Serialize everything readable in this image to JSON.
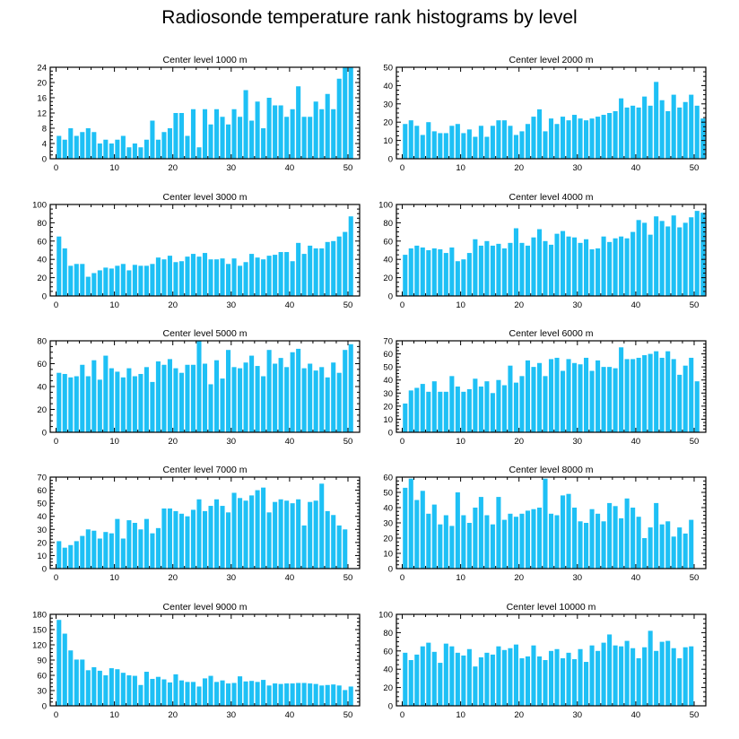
{
  "title": "Radiosonde temperature rank histograms by level",
  "colors": {
    "bar": "#1ec0f5",
    "axis": "#000000",
    "background": "#ffffff"
  },
  "chart_data": [
    {
      "type": "bar",
      "title": "Center level 1000 m",
      "xlim": [
        -1,
        52
      ],
      "xticks": [
        0,
        10,
        20,
        30,
        40,
        50
      ],
      "ylim": [
        0,
        24
      ],
      "yticks": [
        0,
        4,
        8,
        12,
        16,
        20,
        24
      ],
      "values": [
        6,
        5,
        8,
        6,
        7,
        8,
        7,
        4,
        5,
        4,
        5,
        6,
        3,
        4,
        3,
        5,
        10,
        5,
        7,
        8,
        12,
        12,
        6,
        13,
        3,
        13,
        9,
        13,
        11,
        9,
        13,
        11,
        18,
        10,
        15,
        8,
        16,
        14,
        14,
        11,
        13,
        19,
        11,
        11,
        15,
        13,
        17,
        13,
        21,
        24,
        24
      ]
    },
    {
      "type": "bar",
      "title": "Center level 2000 m",
      "xlim": [
        -1,
        52
      ],
      "xticks": [
        0,
        10,
        20,
        30,
        40,
        50
      ],
      "ylim": [
        0,
        50
      ],
      "yticks": [
        0,
        10,
        20,
        30,
        40,
        50
      ],
      "values": [
        19,
        21,
        18,
        13,
        20,
        15,
        14,
        14,
        18,
        19,
        14,
        16,
        12,
        18,
        12,
        18,
        21,
        21,
        18,
        13,
        15,
        19,
        23,
        27,
        15,
        22,
        19,
        23,
        21,
        24,
        22,
        21,
        22,
        23,
        24,
        25,
        26,
        33,
        28,
        29,
        28,
        34,
        29,
        42,
        32,
        26,
        35,
        28,
        31,
        35,
        29,
        22
      ]
    },
    {
      "type": "bar",
      "title": "Center level 3000 m",
      "xlim": [
        -1,
        52
      ],
      "xticks": [
        0,
        10,
        20,
        30,
        40,
        50
      ],
      "ylim": [
        0,
        100
      ],
      "yticks": [
        0,
        20,
        40,
        60,
        80,
        100
      ],
      "values": [
        65,
        52,
        33,
        35,
        35,
        21,
        25,
        28,
        31,
        30,
        33,
        35,
        28,
        34,
        33,
        33,
        35,
        42,
        40,
        44,
        37,
        38,
        43,
        46,
        43,
        47,
        40,
        40,
        41,
        35,
        41,
        33,
        37,
        46,
        42,
        40,
        44,
        45,
        48,
        48,
        38,
        58,
        46,
        55,
        52,
        52,
        59,
        60,
        65,
        70,
        87
      ]
    },
    {
      "type": "bar",
      "title": "Center level 4000 m",
      "xlim": [
        -1,
        52
      ],
      "xticks": [
        0,
        10,
        20,
        30,
        40,
        50
      ],
      "ylim": [
        0,
        100
      ],
      "yticks": [
        0,
        20,
        40,
        60,
        80,
        100
      ],
      "values": [
        45,
        52,
        55,
        53,
        50,
        52,
        51,
        47,
        53,
        38,
        40,
        47,
        62,
        55,
        60,
        55,
        57,
        52,
        58,
        74,
        58,
        55,
        64,
        73,
        60,
        56,
        68,
        71,
        65,
        64,
        58,
        62,
        51,
        52,
        65,
        59,
        63,
        65,
        63,
        70,
        83,
        80,
        67,
        87,
        82,
        76,
        88,
        75,
        80,
        86,
        93,
        91
      ]
    },
    {
      "type": "bar",
      "title": "Center level 5000 m",
      "xlim": [
        -1,
        52
      ],
      "xticks": [
        0,
        10,
        20,
        30,
        40,
        50
      ],
      "ylim": [
        0,
        80
      ],
      "yticks": [
        0,
        20,
        40,
        60,
        80
      ],
      "values": [
        52,
        51,
        48,
        49,
        59,
        49,
        63,
        46,
        67,
        56,
        53,
        48,
        56,
        49,
        51,
        57,
        44,
        62,
        59,
        64,
        56,
        52,
        59,
        59,
        80,
        60,
        42,
        63,
        47,
        72,
        57,
        56,
        61,
        67,
        58,
        49,
        72,
        60,
        65,
        57,
        70,
        73,
        56,
        60,
        54,
        57,
        48,
        61,
        52,
        72,
        77
      ]
    },
    {
      "type": "bar",
      "title": "Center level 6000 m",
      "xlim": [
        -1,
        52
      ],
      "xticks": [
        0,
        10,
        20,
        30,
        40,
        50
      ],
      "ylim": [
        0,
        70
      ],
      "yticks": [
        0,
        10,
        20,
        30,
        40,
        50,
        60,
        70
      ],
      "values": [
        22,
        32,
        34,
        37,
        31,
        39,
        31,
        31,
        43,
        35,
        31,
        33,
        41,
        35,
        39,
        30,
        40,
        36,
        51,
        38,
        43,
        55,
        50,
        53,
        43,
        56,
        57,
        47,
        56,
        53,
        52,
        57,
        47,
        55,
        50,
        50,
        49,
        65,
        56,
        56,
        57,
        59,
        60,
        62,
        57,
        62,
        56,
        44,
        51,
        57,
        39
      ]
    },
    {
      "type": "bar",
      "title": "Center level 7000 m",
      "xlim": [
        -1,
        52
      ],
      "xticks": [
        0,
        10,
        20,
        30,
        40,
        50
      ],
      "ylim": [
        0,
        70
      ],
      "yticks": [
        0,
        10,
        20,
        30,
        40,
        50,
        60,
        70
      ],
      "values": [
        21,
        16,
        18,
        21,
        25,
        30,
        29,
        23,
        28,
        27,
        38,
        23,
        37,
        35,
        30,
        38,
        27,
        31,
        46,
        46,
        44,
        42,
        40,
        45,
        53,
        44,
        48,
        53,
        48,
        43,
        58,
        54,
        52,
        56,
        60,
        62,
        43,
        51,
        53,
        52,
        50,
        53,
        33,
        51,
        52,
        65,
        44,
        41,
        33,
        30
      ]
    },
    {
      "type": "bar",
      "title": "Center level 8000 m",
      "xlim": [
        -1,
        52
      ],
      "xticks": [
        0,
        10,
        20,
        30,
        40,
        50
      ],
      "ylim": [
        0,
        60
      ],
      "yticks": [
        0,
        10,
        20,
        30,
        40,
        50,
        60
      ],
      "values": [
        53,
        59,
        45,
        51,
        36,
        42,
        29,
        35,
        28,
        50,
        35,
        30,
        40,
        47,
        35,
        29,
        47,
        32,
        36,
        34,
        36,
        38,
        39,
        40,
        59,
        36,
        35,
        48,
        49,
        40,
        31,
        30,
        39,
        36,
        31,
        43,
        41,
        33,
        46,
        40,
        34,
        20,
        27,
        43,
        29,
        31,
        21,
        27,
        23,
        32
      ]
    },
    {
      "type": "bar",
      "title": "Center level 9000 m",
      "xlim": [
        -1,
        52
      ],
      "xticks": [
        0,
        10,
        20,
        30,
        40,
        50
      ],
      "ylim": [
        0,
        180
      ],
      "yticks": [
        0,
        30,
        60,
        90,
        120,
        150,
        180
      ],
      "values": [
        169,
        142,
        109,
        91,
        91,
        70,
        76,
        69,
        60,
        74,
        72,
        65,
        60,
        59,
        41,
        67,
        53,
        57,
        52,
        46,
        62,
        50,
        47,
        47,
        38,
        54,
        59,
        47,
        50,
        44,
        45,
        58,
        48,
        49,
        47,
        51,
        40,
        44,
        43,
        44,
        44,
        45,
        45,
        44,
        43,
        40,
        41,
        42,
        40,
        31,
        38
      ]
    },
    {
      "type": "bar",
      "title": "Center level 10000 m",
      "xlim": [
        -1,
        52
      ],
      "xticks": [
        0,
        10,
        20,
        30,
        40,
        50
      ],
      "ylim": [
        0,
        100
      ],
      "yticks": [
        0,
        20,
        40,
        60,
        80,
        100
      ],
      "values": [
        58,
        50,
        56,
        65,
        69,
        59,
        47,
        68,
        65,
        58,
        55,
        62,
        43,
        53,
        58,
        56,
        65,
        61,
        63,
        67,
        52,
        54,
        66,
        54,
        50,
        60,
        62,
        52,
        58,
        51,
        62,
        48,
        66,
        60,
        69,
        78,
        66,
        65,
        71,
        63,
        52,
        64,
        82,
        60,
        70,
        71,
        63,
        52,
        64,
        65
      ]
    }
  ]
}
